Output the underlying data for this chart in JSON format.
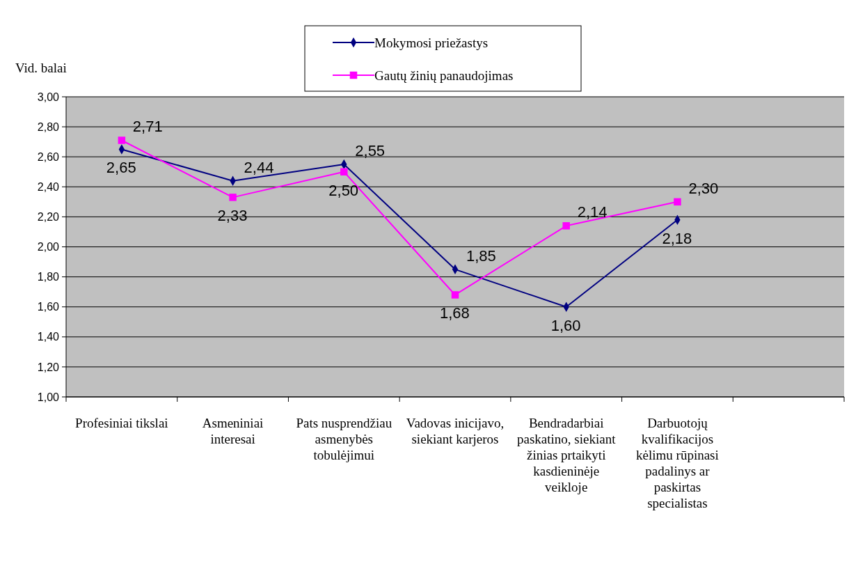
{
  "chart_data": {
    "type": "line",
    "ylabel": "Vid. balai",
    "categories": [
      "Profesiniai tikslai",
      "Asmeniniai interesai",
      "Pats nusprendžiau asmenybės tobulėjimui",
      "Vadovas inicijavo, siekiant karjeros",
      "Bendradarbiai paskatino, siekiant žinias prtaikyti kasdieninėje veikloje",
      "Darbuotojų kvalifikacijos kėlimu rūpinasi padalinys ar paskirtas specialistas",
      null
    ],
    "series": [
      {
        "name": "Mokymosi priežastys",
        "color": "#000080",
        "marker": "diamond",
        "values": [
          2.65,
          2.44,
          2.55,
          1.85,
          1.6,
          2.18,
          null
        ],
        "value_labels": [
          "2,65",
          "2,44",
          "2,55",
          "1,85",
          "1,60",
          "2,18",
          null
        ]
      },
      {
        "name": "Gautų žinių panaudojimas",
        "color": "#ff00ff",
        "marker": "square",
        "values": [
          2.71,
          2.33,
          2.5,
          1.68,
          2.14,
          2.3,
          null
        ],
        "value_labels": [
          "2,71",
          "2,33",
          "2,50",
          "1,68",
          "2,14",
          "2,30",
          null
        ]
      }
    ],
    "ylim": [
      1,
      3
    ],
    "yticks": [
      {
        "value": 1,
        "label": "1,00"
      },
      {
        "value": 1.2,
        "label": "1,20"
      },
      {
        "value": 1.4,
        "label": "1,40"
      },
      {
        "value": 1.6,
        "label": "1,60"
      },
      {
        "value": 1.8,
        "label": "1,80"
      },
      {
        "value": 2,
        "label": "2,00"
      },
      {
        "value": 2.2,
        "label": "2,20"
      },
      {
        "value": 2.4,
        "label": "2,40"
      },
      {
        "value": 2.6,
        "label": "2,60"
      },
      {
        "value": 2.8,
        "label": "2,80"
      },
      {
        "value": 3,
        "label": "3,00"
      }
    ],
    "grid": "y",
    "legend": "top",
    "line_style": "solid"
  }
}
